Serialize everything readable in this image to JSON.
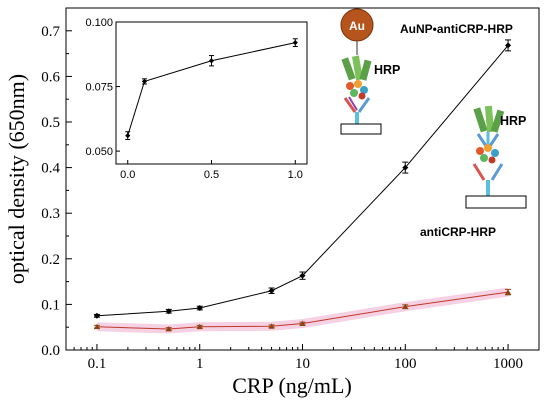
{
  "chart_data": [
    {
      "type": "line",
      "title": "",
      "xlabel": "CRP (ng/mL)",
      "ylabel": "optical density (650nm)",
      "x_scale": "log",
      "xlim": [
        0.05,
        2000
      ],
      "ylim": [
        0,
        0.75
      ],
      "x_ticks": [
        0.1,
        1,
        10,
        100,
        1000
      ],
      "x_tick_labels": [
        "0.1",
        "1",
        "10",
        "100",
        "1000"
      ],
      "y_ticks": [
        0,
        0.1,
        0.2,
        0.3,
        0.4,
        0.5,
        0.6,
        0.7
      ],
      "y_tick_labels": [
        "0.0",
        "0.1",
        "0.2",
        "0.3",
        "0.4",
        "0.5",
        "0.6",
        "0.7"
      ],
      "grid": false,
      "series": [
        {
          "color": "#000000",
          "marker": "diamond",
          "x": [
            0.1,
            0.5,
            1,
            5,
            10,
            100,
            1000
          ],
          "y": [
            0.075,
            0.085,
            0.092,
            0.13,
            0.163,
            0.4,
            0.668
          ],
          "error": [
            0.003,
            0.004,
            0.004,
            0.006,
            0.008,
            0.012,
            0.012
          ]
        },
        {
          "color": "#8b4513",
          "marker": "triangle",
          "x": [
            0.1,
            0.5,
            1,
            5,
            10,
            100,
            1000
          ],
          "y": [
            0.051,
            0.046,
            0.051,
            0.052,
            0.058,
            0.095,
            0.127
          ],
          "error": [
            0.003,
            0.003,
            0.003,
            0.003,
            0.003,
            0.004,
            0.006
          ]
        }
      ],
      "annotations": {
        "au_label": "Au",
        "hrp_label_1": "HRP",
        "hrp_label_2": "HRP",
        "conjugate_label": "AuNP•antiCRP-HRP",
        "anti_label": "antiCRP-HRP"
      }
    },
    {
      "type": "line",
      "title": "",
      "xlim": [
        -0.07,
        1.07
      ],
      "ylim": [
        0.045,
        0.1
      ],
      "x_ticks": [
        0,
        0.5,
        1
      ],
      "x_tick_labels": [
        "0.0",
        "0.5",
        "1.0"
      ],
      "y_ticks": [
        0.05,
        0.075,
        0.1
      ],
      "y_tick_labels": [
        "0.050",
        "0.075",
        "0.100"
      ],
      "series": [
        {
          "color": "#000000",
          "marker": "diamond",
          "x": [
            0,
            0.1,
            0.5,
            1
          ],
          "y": [
            0.056,
            0.077,
            0.085,
            0.092
          ],
          "error": [
            0.0015,
            0.001,
            0.002,
            0.0015
          ]
        }
      ]
    }
  ]
}
